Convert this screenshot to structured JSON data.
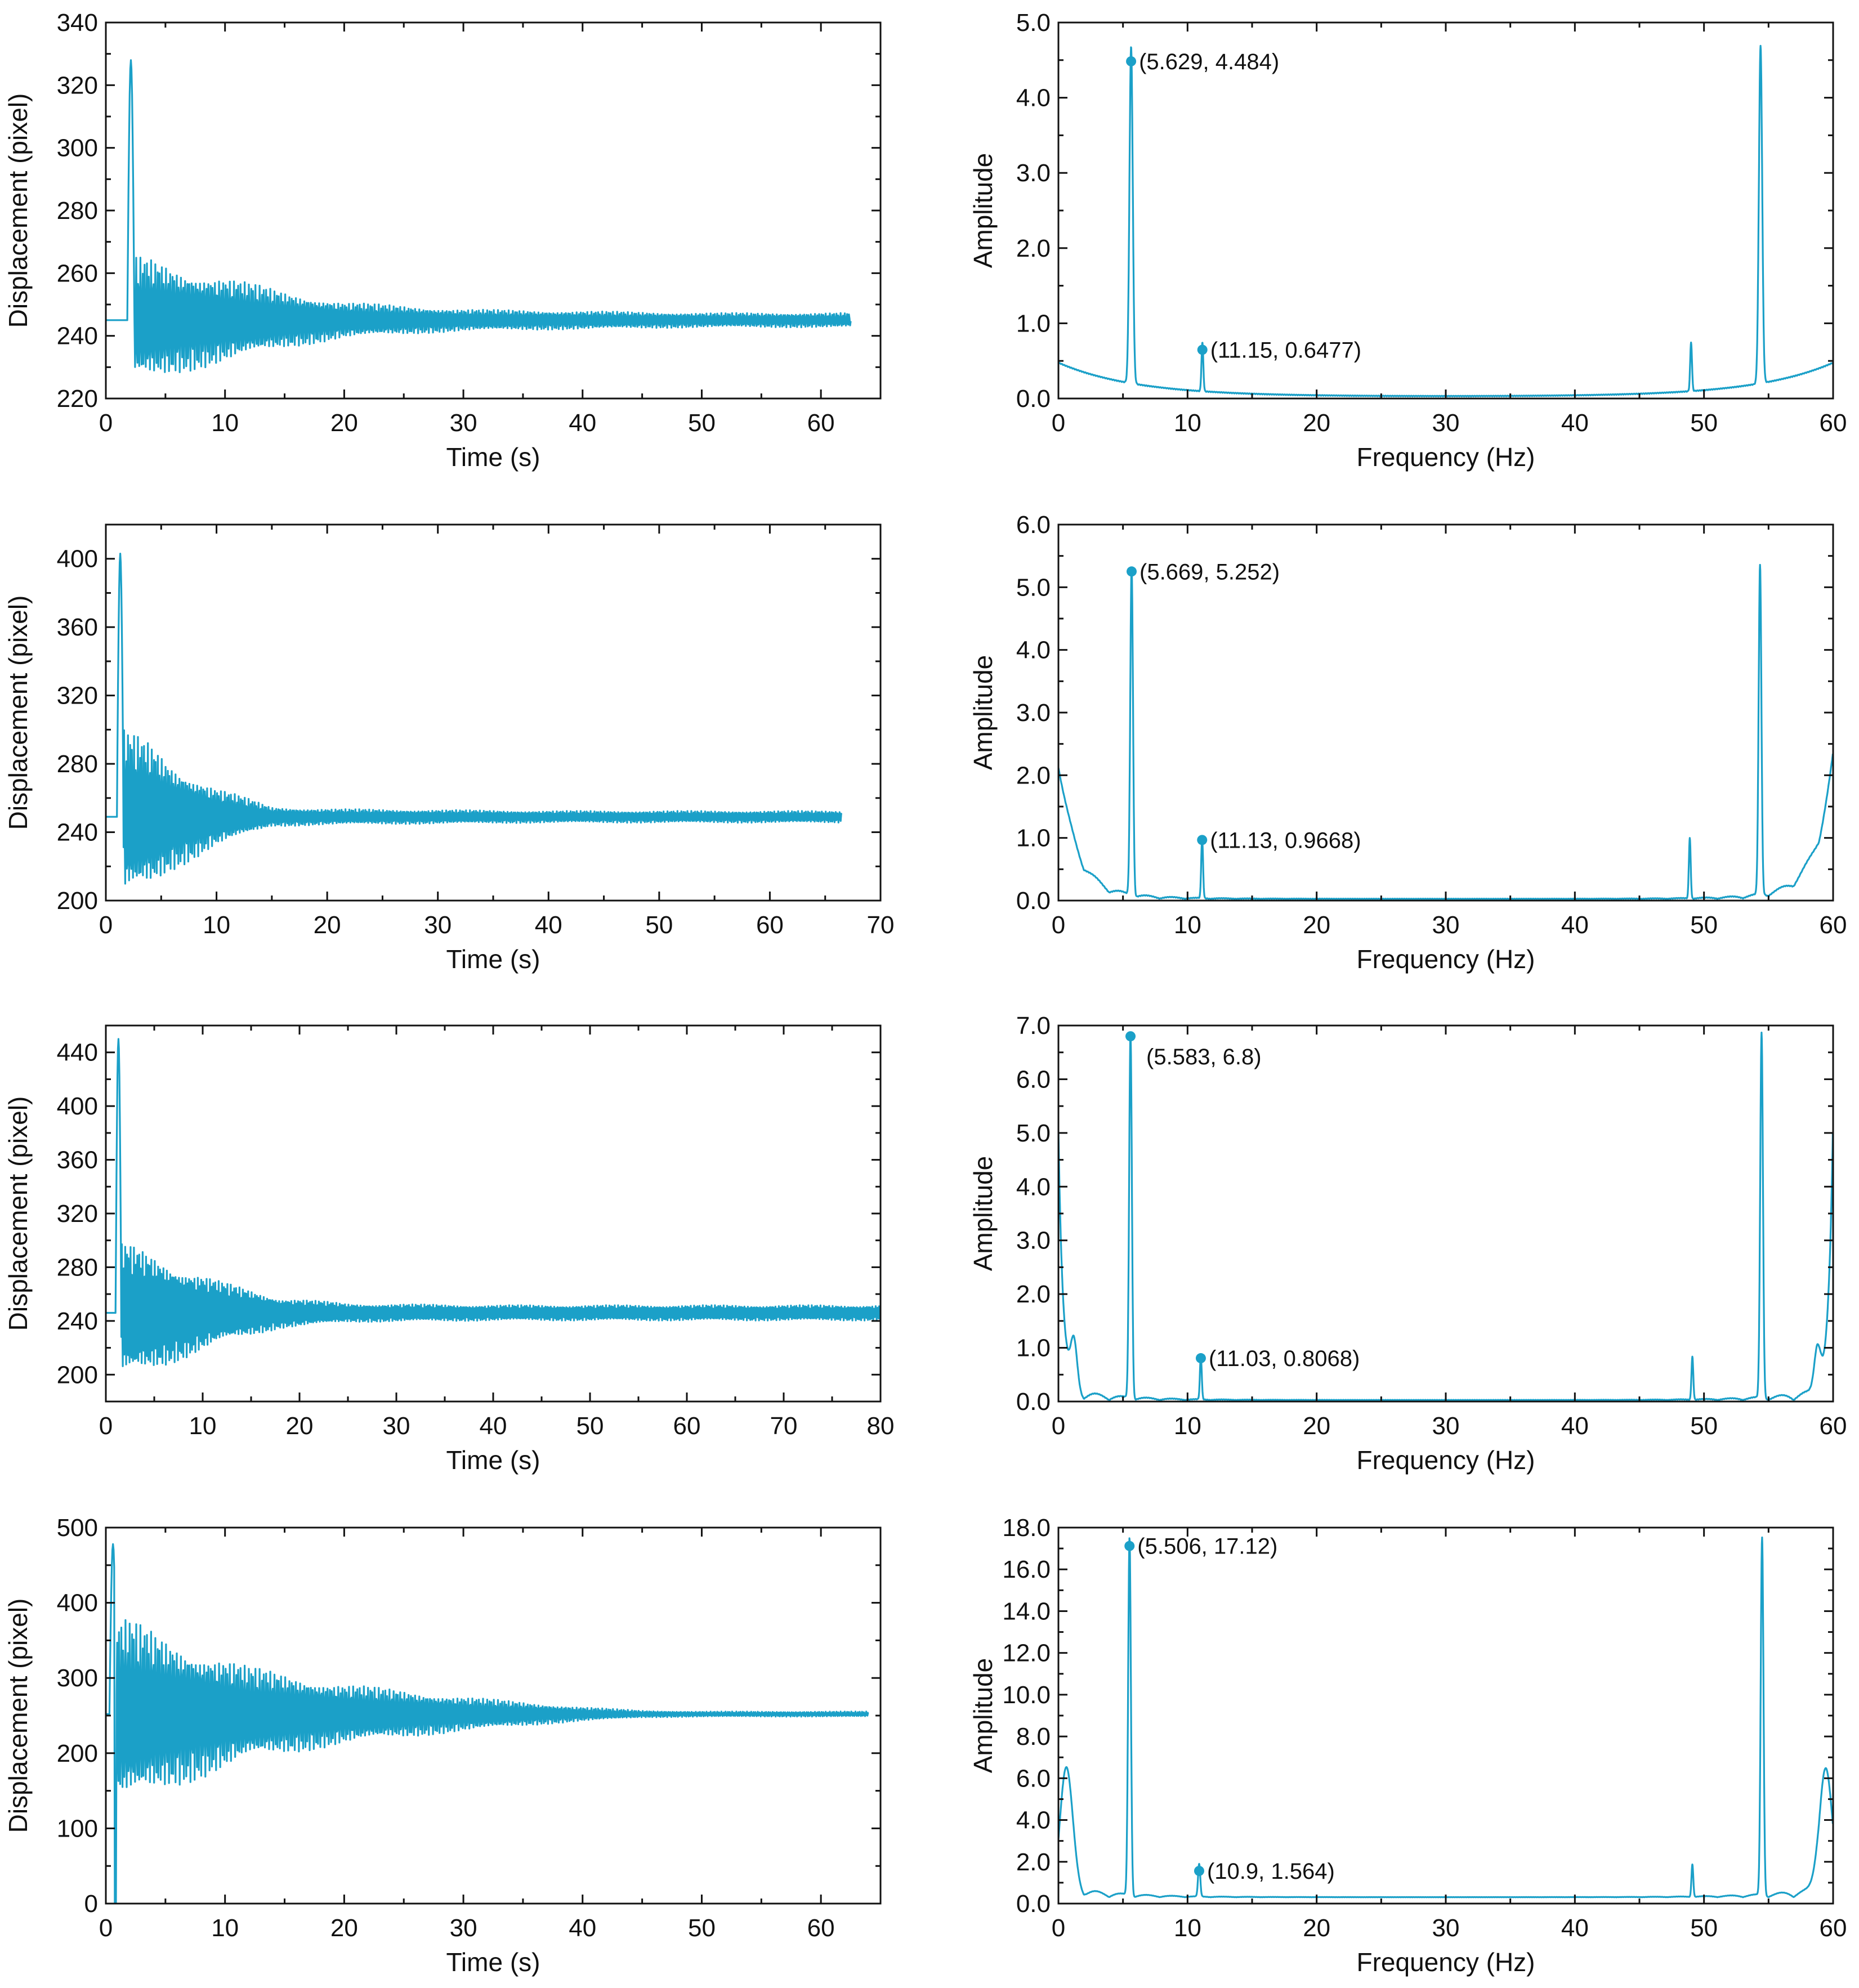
{
  "series_color": "#1ba0c8",
  "chart_data": [
    {
      "id": "time-1",
      "type": "line",
      "xlabel": "Time (s)",
      "ylabel": "Displacement (pixel)",
      "xlim": [
        0,
        65
      ],
      "ylim": [
        220,
        340
      ],
      "xticks": [
        0,
        10,
        20,
        30,
        40,
        50,
        60
      ],
      "yticks": [
        220,
        240,
        260,
        280,
        300,
        320,
        340
      ],
      "signal": {
        "baseline": 245,
        "offset_s": 1.8,
        "end_s": 62.5,
        "spike_peak": 328,
        "envelope": [
          [
            2,
            18
          ],
          [
            4,
            17
          ],
          [
            6,
            15
          ],
          [
            10,
            12
          ],
          [
            15,
            8
          ],
          [
            20,
            5
          ],
          [
            25,
            4
          ],
          [
            30,
            3
          ],
          [
            40,
            2.5
          ],
          [
            50,
            2
          ],
          [
            62.5,
            2
          ]
        ]
      }
    },
    {
      "id": "fft-1",
      "type": "line",
      "xlabel": "Frequency (Hz)",
      "ylabel": "Amplitude",
      "xlim": [
        0,
        60
      ],
      "ylim": [
        0,
        5.0
      ],
      "xticks": [
        0,
        10,
        20,
        30,
        40,
        50,
        60
      ],
      "yticks": [
        0,
        1,
        2,
        3,
        4,
        5
      ],
      "ydecimals": 1,
      "spectrum": {
        "edge_level": 0.45,
        "edge_decay": 6,
        "floor": 0.02,
        "peaks": [
          [
            5.629,
            4.484,
            0.18
          ],
          [
            11.15,
            0.6477,
            0.1
          ],
          [
            49.0,
            0.6477,
            0.1
          ],
          [
            54.38,
            4.484,
            0.18
          ]
        ]
      },
      "annotations": [
        {
          "x": 5.629,
          "y": 4.484,
          "label": "(5.629, 4.484)"
        },
        {
          "x": 11.15,
          "y": 0.6477,
          "label": "(11.15, 0.6477)"
        }
      ]
    },
    {
      "id": "time-2",
      "type": "line",
      "xlabel": "Time (s)",
      "ylabel": "Displacement (pixel)",
      "xlim": [
        0,
        70
      ],
      "ylim": [
        200,
        420
      ],
      "xticks": [
        0,
        10,
        20,
        30,
        40,
        50,
        60,
        70
      ],
      "yticks": [
        200,
        240,
        280,
        320,
        360,
        400
      ],
      "signal": {
        "baseline": 249,
        "offset_s": 1.0,
        "end_s": 66.5,
        "spike_peak": 403,
        "envelope": [
          [
            1.5,
            45
          ],
          [
            4,
            38
          ],
          [
            6,
            28
          ],
          [
            10,
            15
          ],
          [
            15,
            5
          ],
          [
            20,
            4
          ],
          [
            30,
            3.5
          ],
          [
            40,
            3
          ],
          [
            66.5,
            3
          ]
        ]
      }
    },
    {
      "id": "fft-2",
      "type": "line",
      "xlabel": "Frequency (Hz)",
      "ylabel": "Amplitude",
      "xlim": [
        0,
        60
      ],
      "ylim": [
        0,
        6.0
      ],
      "xticks": [
        0,
        10,
        20,
        30,
        40,
        50,
        60
      ],
      "yticks": [
        0,
        1,
        2,
        3,
        4,
        5,
        6
      ],
      "ydecimals": 1,
      "spectrum": {
        "edge_level": 2.1,
        "edge_decay": 1.3,
        "floor": 0.02,
        "ripple": 0.25,
        "peaks": [
          [
            5.669,
            5.252,
            0.15
          ],
          [
            11.13,
            0.9668,
            0.1
          ],
          [
            48.9,
            0.9668,
            0.1
          ],
          [
            54.34,
            5.252,
            0.15
          ]
        ]
      },
      "annotations": [
        {
          "x": 5.669,
          "y": 5.252,
          "label": "(5.669, 5.252)"
        },
        {
          "x": 11.13,
          "y": 0.9668,
          "label": "(11.13, 0.9668)"
        }
      ]
    },
    {
      "id": "time-3",
      "type": "line",
      "xlabel": "Time (s)",
      "ylabel": "Displacement (pixel)",
      "xlim": [
        0,
        80
      ],
      "ylim": [
        180,
        460
      ],
      "xticks": [
        0,
        10,
        20,
        30,
        40,
        50,
        60,
        70,
        80
      ],
      "yticks": [
        200,
        240,
        280,
        320,
        360,
        400,
        440
      ],
      "signal": {
        "baseline": 246,
        "offset_s": 1.0,
        "end_s": 80,
        "spike_peak": 450,
        "envelope": [
          [
            2,
            45
          ],
          [
            4,
            40
          ],
          [
            8,
            30
          ],
          [
            12,
            20
          ],
          [
            18,
            10
          ],
          [
            25,
            6
          ],
          [
            40,
            5
          ],
          [
            60,
            5
          ],
          [
            80,
            5
          ]
        ]
      }
    },
    {
      "id": "fft-3",
      "type": "line",
      "xlabel": "Frequency (Hz)",
      "ylabel": "Amplitude",
      "xlim": [
        0,
        60
      ],
      "ylim": [
        0,
        7.0
      ],
      "xticks": [
        0,
        10,
        20,
        30,
        40,
        50,
        60
      ],
      "yticks": [
        0,
        1,
        2,
        3,
        4,
        5,
        6,
        7
      ],
      "ydecimals": 1,
      "spectrum": {
        "edge_level": 5.0,
        "edge_decay": 0.35,
        "floor": 0.02,
        "ripple": 0.25,
        "peaks": [
          [
            1.2,
            0.85,
            0.35
          ],
          [
            5.583,
            6.8,
            0.15
          ],
          [
            11.03,
            0.8068,
            0.1
          ],
          [
            49.1,
            0.8068,
            0.1
          ],
          [
            54.46,
            6.8,
            0.15
          ],
          [
            58.8,
            0.85,
            0.35
          ]
        ]
      },
      "annotations": [
        {
          "x": 5.583,
          "y": 6.8,
          "label": "(5.583, 6.8)"
        },
        {
          "x": 11.03,
          "y": 0.8068,
          "label": "(11.03, 0.8068)"
        }
      ]
    },
    {
      "id": "time-4",
      "type": "line",
      "xlabel": "Time (s)",
      "ylabel": "Displacement (pixel)",
      "xlim": [
        0,
        65
      ],
      "ylim": [
        0,
        500
      ],
      "xticks": [
        0,
        10,
        20,
        30,
        40,
        50,
        60
      ],
      "yticks": [
        0,
        100,
        200,
        300,
        400,
        500
      ],
      "signal": {
        "baseline": 252,
        "offset_s": 0.3,
        "end_s": 64,
        "spike_peak": 478,
        "spike_low": 0,
        "envelope": [
          [
            2,
            110
          ],
          [
            5,
            90
          ],
          [
            8,
            75
          ],
          [
            12,
            55
          ],
          [
            20,
            35
          ],
          [
            30,
            20
          ],
          [
            40,
            8
          ],
          [
            45,
            4
          ],
          [
            50,
            3
          ],
          [
            64,
            3
          ]
        ]
      }
    },
    {
      "id": "fft-4",
      "type": "line",
      "xlabel": "Frequency (Hz)",
      "ylabel": "Amplitude",
      "xlim": [
        0,
        60
      ],
      "ylim": [
        0,
        18.0
      ],
      "xticks": [
        0,
        10,
        20,
        30,
        40,
        50,
        60
      ],
      "yticks": [
        0,
        2,
        4,
        6,
        8,
        10,
        12,
        14,
        16,
        18
      ],
      "ydecimals": 1,
      "spectrum": {
        "edge_level": 0.0,
        "edge_decay": 1,
        "floor": 0.3,
        "ripple": 0.6,
        "peaks": [
          [
            0.6,
            5.8,
            0.7
          ],
          [
            5.506,
            17.12,
            0.15
          ],
          [
            10.9,
            1.564,
            0.12
          ],
          [
            49.1,
            1.564,
            0.1
          ],
          [
            54.5,
            17.12,
            0.15
          ],
          [
            59.4,
            5.8,
            0.7
          ]
        ]
      },
      "annotations": [
        {
          "x": 5.506,
          "y": 17.12,
          "label": "(5.506, 17.12)"
        },
        {
          "x": 10.9,
          "y": 1.564,
          "label": "(10.9, 1.564)"
        }
      ]
    }
  ]
}
